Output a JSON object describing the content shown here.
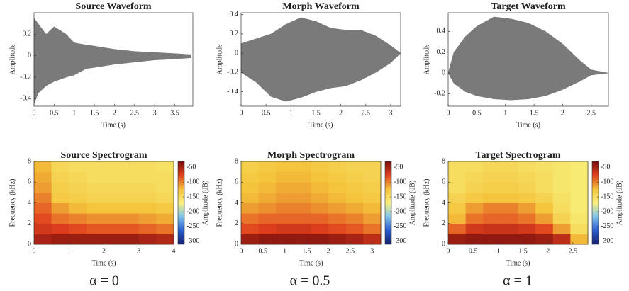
{
  "chart_data": [
    {
      "type": "waveform",
      "title": "Source Waveform",
      "xlabel": "Time (s)",
      "ylabel": "Amplitude",
      "color": "#7a7a7a",
      "x": [
        0,
        0.1,
        0.3,
        0.5,
        0.8,
        1.0,
        1.3,
        1.5,
        2.0,
        2.5,
        3.0,
        3.5,
        3.9
      ],
      "upper": [
        0.35,
        0.3,
        0.2,
        0.27,
        0.2,
        0.12,
        0.1,
        0.09,
        0.06,
        0.04,
        0.03,
        0.02,
        0.01
      ],
      "lower": [
        -0.45,
        -0.35,
        -0.28,
        -0.24,
        -0.2,
        -0.18,
        -0.12,
        -0.11,
        -0.08,
        -0.06,
        -0.04,
        -0.03,
        -0.02
      ],
      "xlim": [
        0,
        3.95
      ],
      "xticks": [
        0,
        0.5,
        1,
        1.5,
        2,
        2.5,
        3,
        3.5
      ],
      "ylim": [
        -0.47,
        0.4
      ],
      "yticks": [
        -0.4,
        -0.2,
        0,
        0.2
      ]
    },
    {
      "type": "waveform",
      "title": "Morph Waveform",
      "xlabel": "Time (s)",
      "ylabel": "Amplitude",
      "color": "#7a7a7a",
      "x": [
        0,
        0.3,
        0.6,
        0.9,
        1.2,
        1.5,
        1.8,
        2.1,
        2.4,
        2.7,
        3.0,
        3.2
      ],
      "upper": [
        0.1,
        0.15,
        0.2,
        0.3,
        0.37,
        0.33,
        0.26,
        0.24,
        0.24,
        0.18,
        0.08,
        0
      ],
      "lower": [
        -0.2,
        -0.3,
        -0.45,
        -0.5,
        -0.46,
        -0.4,
        -0.36,
        -0.34,
        -0.28,
        -0.2,
        -0.1,
        0
      ],
      "xlim": [
        0,
        3.2
      ],
      "xticks": [
        0,
        0.5,
        1,
        1.5,
        2,
        2.5,
        3
      ],
      "ylim": [
        -0.55,
        0.42
      ],
      "yticks": [
        -0.4,
        -0.2,
        0,
        0.2,
        0.4
      ]
    },
    {
      "type": "waveform",
      "title": "Target Waveform",
      "xlabel": "Time (s)",
      "ylabel": "Amplitude",
      "color": "#7a7a7a",
      "x": [
        0,
        0.1,
        0.3,
        0.5,
        0.8,
        1.1,
        1.4,
        1.7,
        2.0,
        2.3,
        2.5,
        2.8
      ],
      "upper": [
        0,
        0.2,
        0.35,
        0.45,
        0.54,
        0.52,
        0.48,
        0.4,
        0.28,
        0.12,
        0.03,
        0
      ],
      "lower": [
        0,
        -0.1,
        -0.18,
        -0.22,
        -0.25,
        -0.26,
        -0.25,
        -0.22,
        -0.16,
        -0.08,
        -0.02,
        0
      ],
      "xlim": [
        0,
        2.8
      ],
      "xticks": [
        0,
        0.5,
        1,
        1.5,
        2,
        2.5
      ],
      "ylim": [
        -0.32,
        0.58
      ],
      "yticks": [
        -0.2,
        0,
        0.2,
        0.4
      ]
    },
    {
      "type": "heatmap",
      "title": "Source Spectrogram",
      "xlabel": "Time (s)",
      "ylabel": "Frequency (kHz)",
      "colorbar_label": "Amplitude (dB)",
      "xlim": [
        0,
        4
      ],
      "xticks": [
        0,
        1,
        2,
        3,
        4
      ],
      "ylim": [
        0,
        8
      ],
      "yticks": [
        0,
        2,
        4,
        6,
        8
      ],
      "zlim": [
        -310,
        -30
      ],
      "zticks": [
        -50,
        -100,
        -150,
        -200,
        -250,
        -300
      ],
      "colormap": [
        "#14206e",
        "#2a5bd0",
        "#7fc4ea",
        "#f8f07a",
        "#f4c23a",
        "#e0401e",
        "#7a0e0e"
      ],
      "values": [
        [
          -50,
          -45,
          -45,
          -45,
          -45,
          -45,
          -50,
          -55
        ],
        [
          -70,
          -75,
          -80,
          -85,
          -85,
          -85,
          -90,
          -95
        ],
        [
          -80,
          -95,
          -100,
          -105,
          -105,
          -105,
          -110,
          -115
        ],
        [
          -90,
          -110,
          -120,
          -125,
          -125,
          -125,
          -125,
          -130
        ],
        [
          -100,
          -130,
          -135,
          -140,
          -140,
          -140,
          -140,
          -145
        ],
        [
          -110,
          -135,
          -140,
          -145,
          -145,
          -145,
          -145,
          -150
        ],
        [
          -115,
          -140,
          -145,
          -150,
          -150,
          -150,
          -150,
          -150
        ],
        [
          -120,
          -145,
          -150,
          -150,
          -150,
          -150,
          -150,
          -155
        ]
      ]
    },
    {
      "type": "heatmap",
      "title": "Morph Spectrogram",
      "xlabel": "Time (s)",
      "ylabel": "Frequency (kHz)",
      "colorbar_label": "Amplitude (dB)",
      "xlim": [
        0,
        3.2
      ],
      "xticks": [
        0,
        0.5,
        1,
        1.5,
        2,
        2.5,
        3
      ],
      "ylim": [
        0,
        8
      ],
      "yticks": [
        0,
        2,
        4,
        6,
        8
      ],
      "zlim": [
        -310,
        -30
      ],
      "zticks": [
        -50,
        -100,
        -150,
        -200,
        -250,
        -300
      ],
      "colormap": [
        "#14206e",
        "#2a5bd0",
        "#7fc4ea",
        "#f8f07a",
        "#f4c23a",
        "#e0401e",
        "#7a0e0e"
      ],
      "values": [
        [
          -45,
          -40,
          -40,
          -40,
          -40,
          -45,
          -50,
          -60
        ],
        [
          -80,
          -75,
          -70,
          -70,
          -75,
          -80,
          -85,
          -95
        ],
        [
          -95,
          -90,
          -90,
          -90,
          -90,
          -95,
          -100,
          -110
        ],
        [
          -110,
          -105,
          -100,
          -100,
          -105,
          -110,
          -115,
          -120
        ],
        [
          -120,
          -115,
          -110,
          -110,
          -115,
          -120,
          -125,
          -130
        ],
        [
          -125,
          -120,
          -115,
          -115,
          -120,
          -125,
          -130,
          -135
        ],
        [
          -130,
          -125,
          -120,
          -120,
          -125,
          -130,
          -135,
          -140
        ],
        [
          -135,
          -130,
          -125,
          -125,
          -130,
          -135,
          -140,
          -140
        ]
      ]
    },
    {
      "type": "heatmap",
      "title": "Target Spectrogram",
      "xlabel": "Time (s)",
      "ylabel": "Frequency (kHz)",
      "colorbar_label": "Amplitude (dB)",
      "xlim": [
        0,
        2.8
      ],
      "xticks": [
        0,
        0.5,
        1,
        1.5,
        2,
        2.5
      ],
      "ylim": [
        0,
        8
      ],
      "yticks": [
        0,
        2,
        4,
        6,
        8
      ],
      "zlim": [
        -310,
        -30
      ],
      "zticks": [
        -50,
        -100,
        -150,
        -200,
        -250,
        -300
      ],
      "colormap": [
        "#14206e",
        "#2a5bd0",
        "#7fc4ea",
        "#f8f07a",
        "#f4c23a",
        "#e0401e",
        "#7a0e0e"
      ],
      "values": [
        [
          -45,
          -40,
          -40,
          -40,
          -40,
          -45,
          -60,
          -120
        ],
        [
          -90,
          -70,
          -65,
          -65,
          -70,
          -80,
          -110,
          -150
        ],
        [
          -120,
          -95,
          -90,
          -90,
          -95,
          -110,
          -140,
          -160
        ],
        [
          -130,
          -110,
          -100,
          -100,
          -110,
          -125,
          -150,
          -165
        ],
        [
          -140,
          -130,
          -125,
          -125,
          -130,
          -140,
          -155,
          -165
        ],
        [
          -150,
          -140,
          -135,
          -135,
          -140,
          -150,
          -160,
          -165
        ],
        [
          -150,
          -145,
          -140,
          -140,
          -145,
          -150,
          -160,
          -165
        ],
        [
          -150,
          -150,
          -145,
          -145,
          -150,
          -155,
          -160,
          -165
        ]
      ]
    }
  ],
  "captions": [
    "α = 0",
    "α = 0.5",
    "α = 1"
  ]
}
